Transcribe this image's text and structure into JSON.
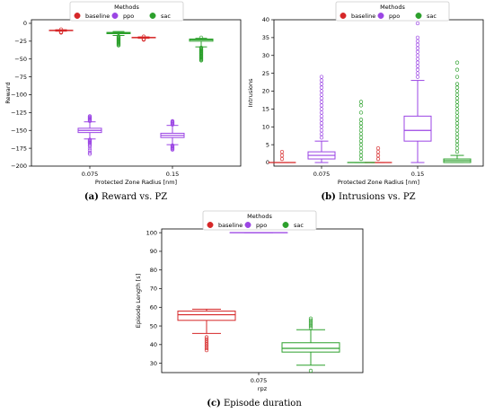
{
  "legend": {
    "title": "Methods",
    "items": [
      {
        "label": "baseline",
        "color": "#d62728"
      },
      {
        "label": "ppo",
        "color": "#9b45e4"
      },
      {
        "label": "sac",
        "color": "#2ca02c"
      }
    ]
  },
  "chart_data": [
    {
      "id": "a",
      "type": "box",
      "caption_letter": "(a)",
      "caption_text": " Reward vs. PZ",
      "xlabel": "Protected Zone Radius [nm]",
      "ylabel": "Reward",
      "categories": [
        "0.075",
        "0.15"
      ],
      "ylim": [
        -200,
        5
      ],
      "yticks": [
        0,
        -25,
        -50,
        -75,
        -100,
        -125,
        -150,
        -175,
        -200
      ],
      "series": [
        {
          "name": "baseline",
          "boxes": [
            {
              "whislo": -11,
              "q1": -10.3,
              "med": -10,
              "q3": -9.7,
              "whishi": -9,
              "fliers": [
                -12,
                -12.5,
                -13,
                -8.5
              ]
            },
            {
              "whislo": -21,
              "q1": -20.3,
              "med": -20,
              "q3": -19.7,
              "whishi": -19,
              "fliers": [
                -22,
                -22.5,
                -23,
                -18.5
              ]
            }
          ]
        },
        {
          "name": "ppo",
          "boxes": [
            {
              "whislo": -162,
              "q1": -153,
              "med": -150,
              "q3": -147,
              "whishi": -138,
              "fliers": [
                -130,
                -131,
                -132,
                -133,
                -134,
                -135,
                -136,
                -137,
                -163,
                -164,
                -165,
                -166,
                -167,
                -168,
                -170,
                -172,
                -175,
                -178,
                -181,
                -183
              ]
            },
            {
              "whislo": -170,
              "q1": -160,
              "med": -157,
              "q3": -154,
              "whishi": -143,
              "fliers": [
                -137,
                -138,
                -139,
                -140,
                -141,
                -142,
                -171,
                -172,
                -173,
                -174,
                -175,
                -176,
                -177
              ]
            }
          ]
        },
        {
          "name": "sac",
          "boxes": [
            {
              "whislo": -17,
              "q1": -14.5,
              "med": -13.5,
              "q3": -12.7,
              "whishi": -11.5,
              "fliers": [
                -18,
                -19,
                -20,
                -21,
                -22,
                -23,
                -24,
                -25,
                -26,
                -27,
                -28,
                -29,
                -30,
                -31
              ]
            },
            {
              "whislo": -33,
              "q1": -25,
              "med": -23,
              "q3": -22,
              "whishi": -21,
              "fliers": [
                -34,
                -35,
                -36,
                -37,
                -38,
                -39,
                -40,
                -41,
                -42,
                -43,
                -44,
                -45,
                -46,
                -47,
                -48,
                -49,
                -50,
                -51,
                -52,
                -20
              ]
            }
          ]
        }
      ]
    },
    {
      "id": "b",
      "type": "box",
      "caption_letter": "(b)",
      "caption_text": " Intrusions vs. PZ",
      "xlabel": "Protected Zone Radius [nm]",
      "ylabel": "Intrusions",
      "categories": [
        "0.075",
        "0.15"
      ],
      "ylim": [
        -1,
        40
      ],
      "yticks": [
        0,
        5,
        10,
        15,
        20,
        25,
        30,
        35,
        40
      ],
      "series": [
        {
          "name": "baseline",
          "boxes": [
            {
              "whislo": 0,
              "q1": 0,
              "med": 0,
              "q3": 0,
              "whishi": 0,
              "fliers": [
                1,
                2,
                3
              ]
            },
            {
              "whislo": 0,
              "q1": 0,
              "med": 0,
              "q3": 0,
              "whishi": 0,
              "fliers": [
                1,
                2,
                3,
                4
              ]
            }
          ]
        },
        {
          "name": "ppo",
          "boxes": [
            {
              "whislo": 0,
              "q1": 1,
              "med": 2,
              "q3": 3,
              "whishi": 6,
              "fliers": [
                7,
                8,
                9,
                10,
                11,
                12,
                13,
                14,
                15,
                16,
                17,
                18,
                19,
                20,
                21,
                22,
                23,
                24
              ]
            },
            {
              "whislo": 0,
              "q1": 6,
              "med": 9,
              "q3": 13,
              "whishi": 23,
              "fliers": [
                24,
                25,
                26,
                27,
                28,
                29,
                30,
                31,
                32,
                33,
                34,
                35,
                39
              ]
            }
          ]
        },
        {
          "name": "sac",
          "boxes": [
            {
              "whislo": 0,
              "q1": 0,
              "med": 0,
              "q3": 0,
              "whishi": 0,
              "fliers": [
                1,
                2,
                3,
                4,
                5,
                6,
                7,
                8,
                9,
                10,
                11,
                12,
                14,
                16,
                17
              ]
            },
            {
              "whislo": 0,
              "q1": 0,
              "med": 0.5,
              "q3": 1,
              "whishi": 2,
              "fliers": [
                3,
                4,
                5,
                6,
                7,
                8,
                9,
                10,
                11,
                12,
                13,
                14,
                15,
                16,
                17,
                18,
                19,
                20,
                21,
                22,
                24,
                26,
                28
              ]
            }
          ]
        }
      ]
    },
    {
      "id": "c",
      "type": "box",
      "caption_letter": "(c)",
      "caption_text": " Episode duration",
      "xlabel": "rpz",
      "ylabel": "Episode Length [s]",
      "categories": [
        "0.075"
      ],
      "ylim": [
        25,
        102
      ],
      "yticks": [
        30,
        40,
        50,
        60,
        70,
        80,
        90,
        100
      ],
      "series": [
        {
          "name": "baseline",
          "boxes": [
            {
              "whislo": 46,
              "q1": 53,
              "med": 56,
              "q3": 58,
              "whishi": 59,
              "fliers": [
                37,
                38,
                39,
                40,
                41,
                42,
                43,
                44
              ]
            }
          ]
        },
        {
          "name": "ppo",
          "boxes": [
            {
              "whislo": 100,
              "q1": 100,
              "med": 100,
              "q3": 100,
              "whishi": 100,
              "fliers": []
            }
          ]
        },
        {
          "name": "sac",
          "boxes": [
            {
              "whislo": 29,
              "q1": 36,
              "med": 38,
              "q3": 41,
              "whishi": 48,
              "fliers": [
                26,
                49,
                50,
                51,
                52,
                53,
                54
              ]
            }
          ]
        }
      ]
    }
  ]
}
